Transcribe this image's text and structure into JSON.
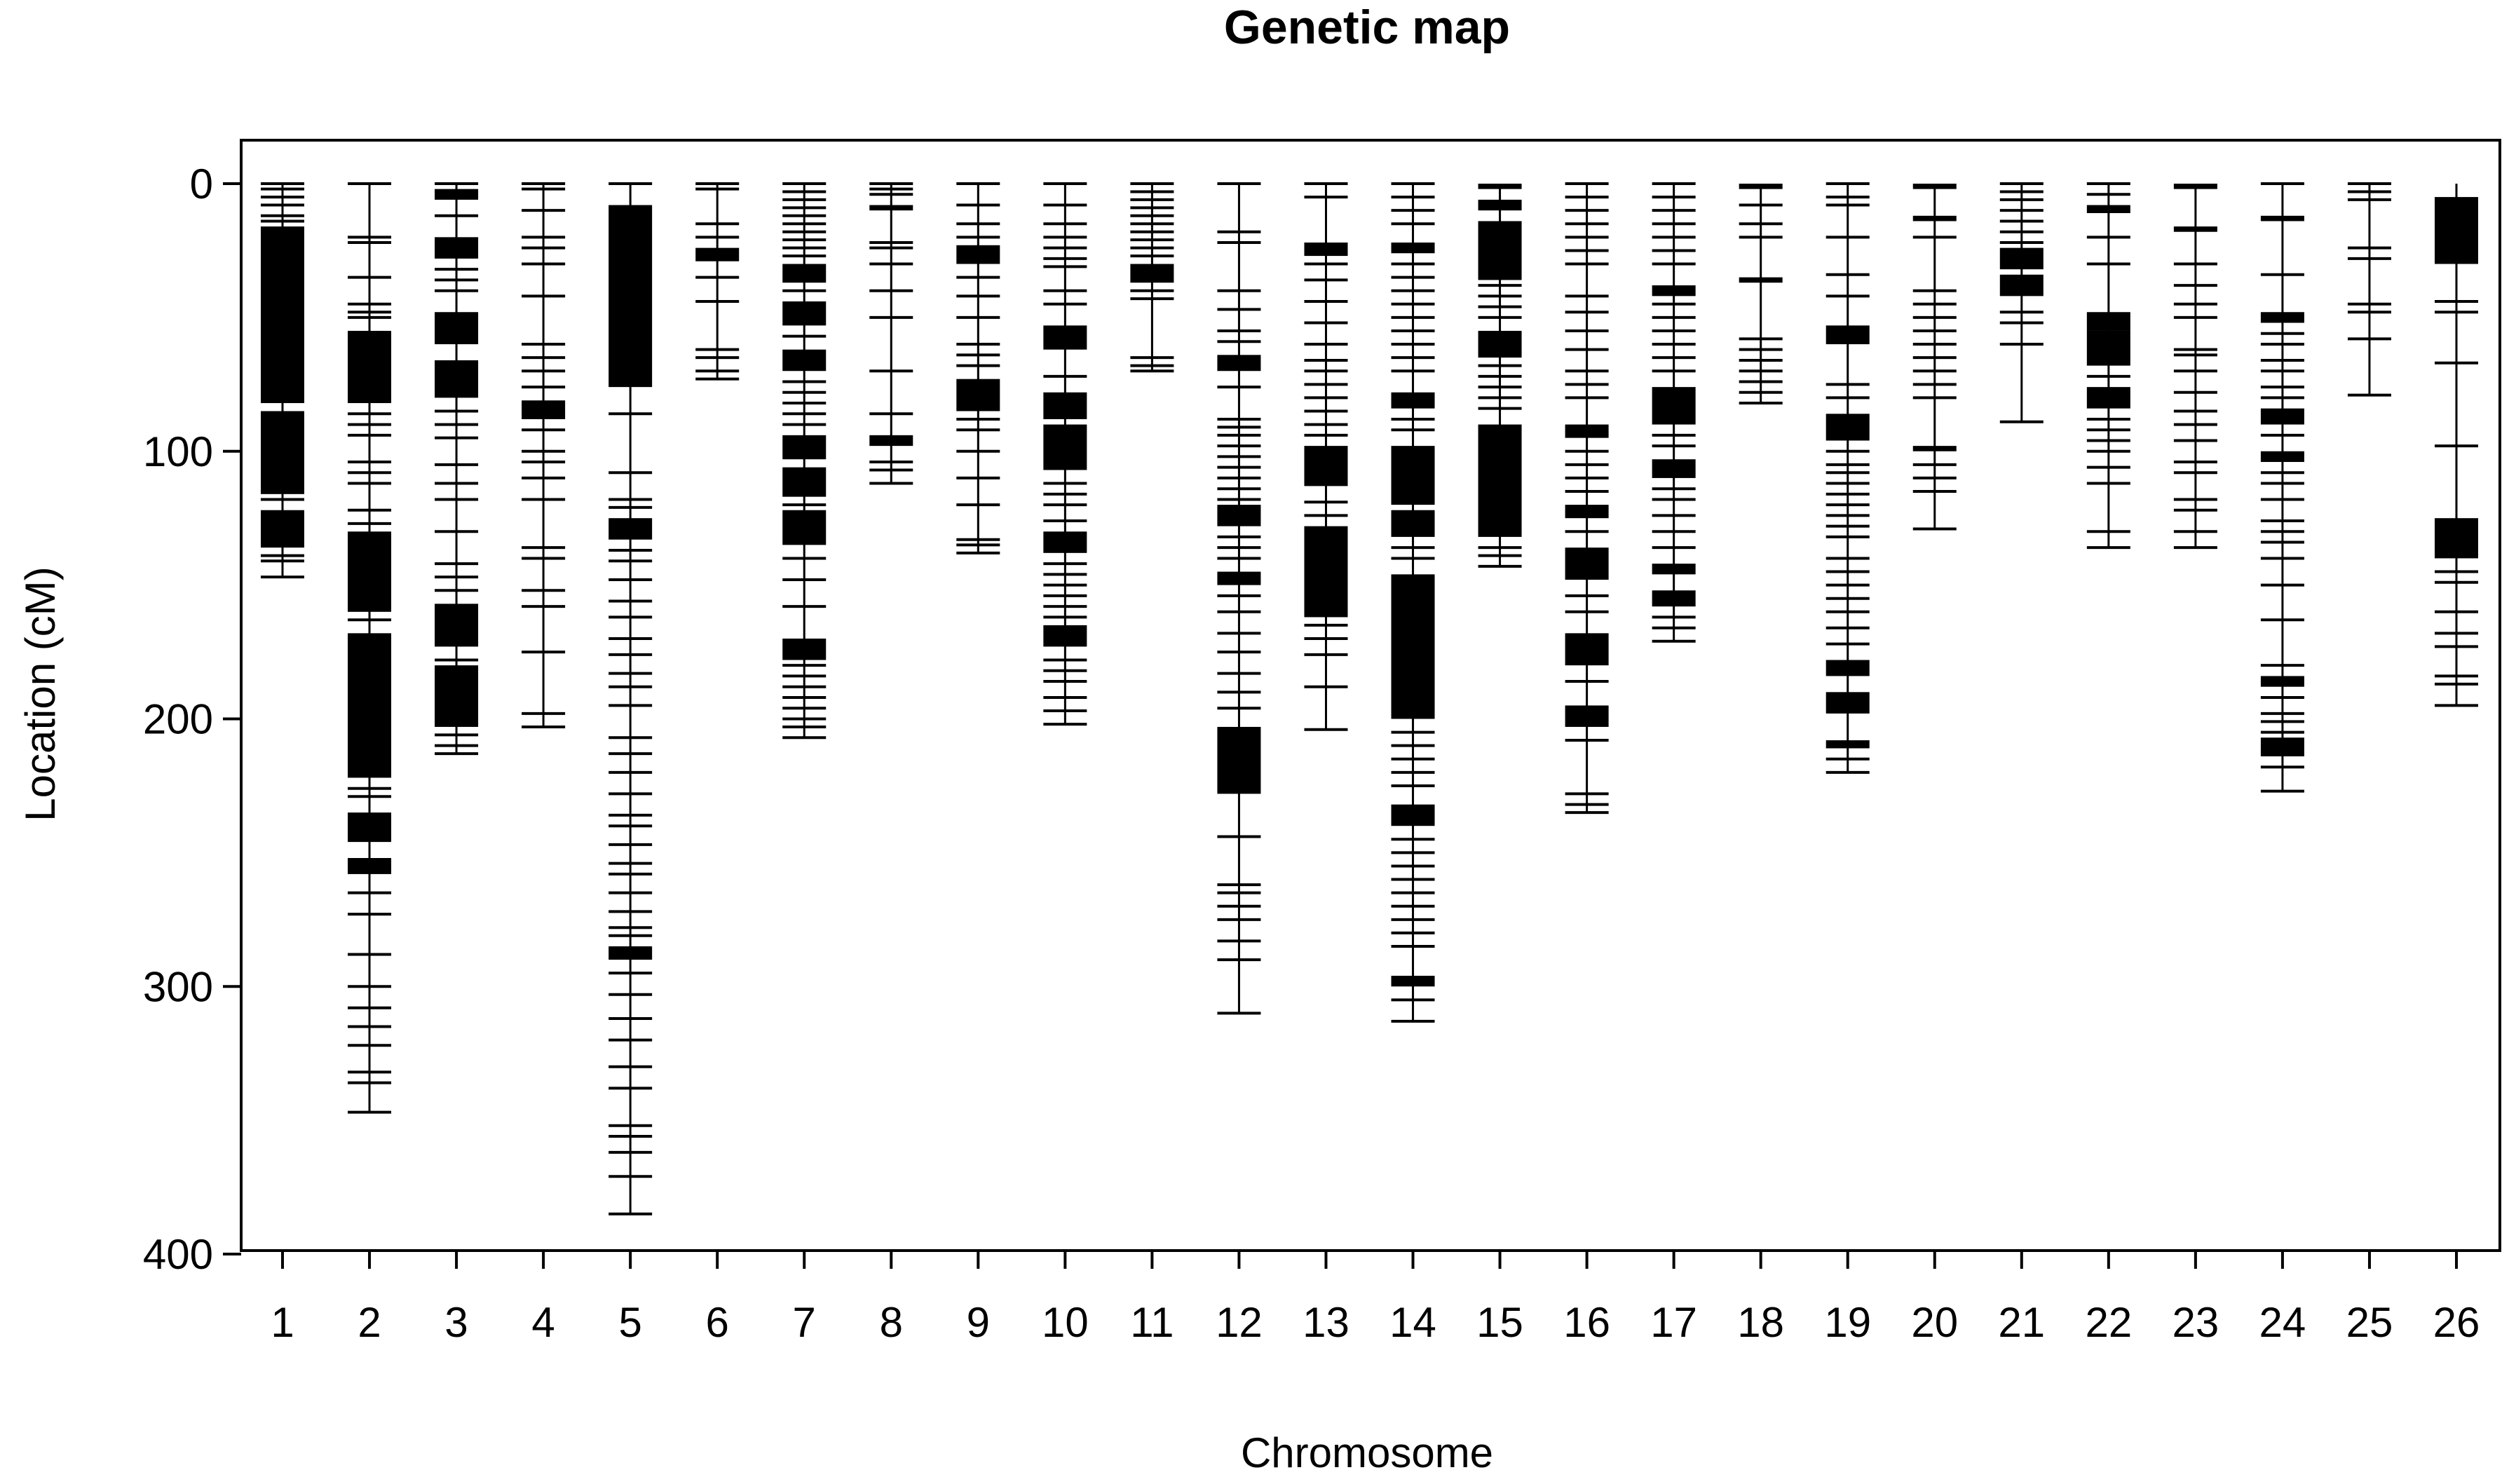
{
  "chart_data": {
    "type": "genetic-map",
    "title": "Genetic map",
    "xlabel": "Chromosome",
    "ylabel": "Location (cM)",
    "ylim": [
      400,
      0
    ],
    "yticks": [
      0,
      100,
      200,
      300,
      400
    ],
    "chromosomes": [
      {
        "name": "1",
        "length": 147,
        "blocks": [
          [
            16,
            82
          ],
          [
            85,
            116
          ],
          [
            122,
            136
          ]
        ],
        "markers": [
          0,
          2,
          5,
          8,
          12,
          14,
          90,
          118,
          139,
          141,
          147
        ]
      },
      {
        "name": "2",
        "length": 347,
        "blocks": [
          [
            55,
            82
          ],
          [
            130,
            160
          ],
          [
            168,
            222
          ],
          [
            235,
            246
          ],
          [
            252,
            258
          ]
        ],
        "markers": [
          0,
          20,
          22,
          35,
          45,
          48,
          50,
          86,
          90,
          94,
          104,
          108,
          112,
          122,
          127,
          163,
          226,
          229,
          265,
          273,
          288,
          300,
          308,
          315,
          322,
          332,
          336,
          347
        ]
      },
      {
        "name": "3",
        "length": 213,
        "blocks": [
          [
            2,
            6
          ],
          [
            20,
            28
          ],
          [
            48,
            60
          ],
          [
            66,
            80
          ],
          [
            157,
            173
          ],
          [
            180,
            203
          ]
        ],
        "markers": [
          0,
          12,
          32,
          36,
          40,
          85,
          90,
          95,
          105,
          112,
          118,
          130,
          142,
          147,
          152,
          178,
          206,
          210,
          213
        ]
      },
      {
        "name": "4",
        "length": 203,
        "blocks": [
          [
            81,
            88
          ]
        ],
        "markers": [
          0,
          2,
          10,
          20,
          24,
          30,
          42,
          60,
          65,
          70,
          76,
          92,
          100,
          104,
          110,
          118,
          136,
          140,
          152,
          158,
          175,
          198,
          203
        ]
      },
      {
        "name": "5",
        "length": 385,
        "blocks": [
          [
            8,
            76
          ],
          [
            125,
            133
          ],
          [
            285,
            290
          ]
        ],
        "markers": [
          0,
          86,
          108,
          118,
          121,
          137,
          141,
          148,
          156,
          162,
          170,
          176,
          183,
          188,
          195,
          207,
          213,
          220,
          228,
          236,
          240,
          247,
          254,
          258,
          265,
          272,
          278,
          281,
          295,
          303,
          312,
          320,
          330,
          338,
          352,
          356,
          362,
          371,
          385
        ]
      },
      {
        "name": "6",
        "length": 73,
        "blocks": [
          [
            24,
            29
          ]
        ],
        "markers": [
          0,
          2,
          15,
          20,
          35,
          44,
          62,
          65,
          70,
          73
        ]
      },
      {
        "name": "7",
        "length": 207,
        "blocks": [
          [
            30,
            37
          ],
          [
            44,
            53
          ],
          [
            62,
            70
          ],
          [
            94,
            103
          ],
          [
            106,
            117
          ],
          [
            122,
            135
          ],
          [
            170,
            178
          ]
        ],
        "markers": [
          0,
          3,
          6,
          9,
          12,
          15,
          18,
          21,
          24,
          27,
          40,
          57,
          74,
          78,
          82,
          86,
          90,
          120,
          140,
          148,
          158,
          180,
          184,
          188,
          192,
          196,
          200,
          203,
          207
        ]
      },
      {
        "name": "8",
        "length": 112,
        "blocks": [
          [
            8,
            10
          ],
          [
            94,
            98
          ]
        ],
        "markers": [
          0,
          2,
          4,
          22,
          24,
          30,
          40,
          50,
          70,
          86,
          104,
          107,
          112
        ]
      },
      {
        "name": "9",
        "length": 138,
        "blocks": [
          [
            23,
            30
          ],
          [
            73,
            85
          ]
        ],
        "markers": [
          0,
          8,
          15,
          20,
          35,
          42,
          50,
          60,
          64,
          68,
          88,
          92,
          100,
          110,
          120,
          133,
          135,
          138
        ]
      },
      {
        "name": "10",
        "length": 202,
        "blocks": [
          [
            53,
            62
          ],
          [
            78,
            88
          ],
          [
            90,
            107
          ],
          [
            130,
            138
          ],
          [
            165,
            173
          ]
        ],
        "markers": [
          0,
          8,
          15,
          20,
          24,
          28,
          31,
          40,
          45,
          72,
          112,
          116,
          120,
          126,
          142,
          146,
          150,
          154,
          158,
          162,
          178,
          182,
          186,
          192,
          197,
          202
        ]
      },
      {
        "name": "11",
        "length": 70,
        "blocks": [
          [
            30,
            37
          ]
        ],
        "markers": [
          0,
          3,
          6,
          9,
          12,
          15,
          18,
          21,
          24,
          27,
          40,
          43,
          65,
          68,
          70
        ]
      },
      {
        "name": "12",
        "length": 310,
        "blocks": [
          [
            64,
            70
          ],
          [
            120,
            128
          ],
          [
            145,
            150
          ],
          [
            203,
            228
          ]
        ],
        "markers": [
          0,
          18,
          22,
          40,
          47,
          55,
          59,
          76,
          88,
          91,
          94,
          98,
          102,
          106,
          110,
          114,
          118,
          132,
          136,
          140,
          154,
          160,
          168,
          175,
          183,
          190,
          196,
          244,
          262,
          265,
          270,
          275,
          283,
          290,
          310
        ]
      },
      {
        "name": "13",
        "length": 204,
        "blocks": [
          [
            22,
            27
          ],
          [
            98,
            113
          ],
          [
            128,
            162
          ]
        ],
        "markers": [
          0,
          5,
          30,
          36,
          44,
          52,
          60,
          66,
          70,
          75,
          80,
          85,
          90,
          94,
          119,
          124,
          165,
          170,
          176,
          188,
          204
        ]
      },
      {
        "name": "14",
        "length": 313,
        "blocks": [
          [
            22,
            26
          ],
          [
            78,
            84
          ],
          [
            98,
            120
          ],
          [
            122,
            132
          ],
          [
            146,
            200
          ],
          [
            232,
            240
          ],
          [
            296,
            300
          ]
        ],
        "markers": [
          0,
          5,
          10,
          15,
          30,
          35,
          40,
          45,
          50,
          55,
          60,
          65,
          70,
          88,
          92,
          136,
          140,
          205,
          210,
          215,
          220,
          225,
          245,
          250,
          255,
          260,
          265,
          270,
          275,
          280,
          285,
          305,
          313
        ]
      },
      {
        "name": "15",
        "length": 143,
        "blocks": [
          [
            0,
            2
          ],
          [
            6,
            10
          ],
          [
            14,
            36
          ],
          [
            55,
            65
          ],
          [
            90,
            132
          ]
        ],
        "markers": [
          38,
          42,
          46,
          50,
          68,
          72,
          76,
          80,
          84,
          136,
          139,
          143
        ]
      },
      {
        "name": "16",
        "length": 235,
        "blocks": [
          [
            90,
            95
          ],
          [
            120,
            125
          ],
          [
            136,
            148
          ],
          [
            168,
            180
          ],
          [
            195,
            203
          ]
        ],
        "markers": [
          0,
          5,
          10,
          15,
          20,
          25,
          30,
          42,
          48,
          55,
          62,
          70,
          75,
          80,
          100,
          105,
          110,
          115,
          130,
          154,
          160,
          186,
          208,
          228,
          232,
          235
        ]
      },
      {
        "name": "17",
        "length": 171,
        "blocks": [
          [
            38,
            42
          ],
          [
            76,
            90
          ],
          [
            103,
            110
          ],
          [
            142,
            146
          ],
          [
            152,
            158
          ]
        ],
        "markers": [
          0,
          5,
          10,
          15,
          20,
          25,
          30,
          45,
          50,
          55,
          60,
          65,
          70,
          94,
          98,
          114,
          118,
          124,
          130,
          136,
          162,
          166,
          171
        ]
      },
      {
        "name": "18",
        "length": 82,
        "blocks": [
          [
            0,
            2
          ],
          [
            35,
            37
          ]
        ],
        "markers": [
          8,
          15,
          20,
          58,
          62,
          66,
          70,
          74,
          78,
          82
        ]
      },
      {
        "name": "19",
        "length": 220,
        "blocks": [
          [
            53,
            60
          ],
          [
            86,
            96
          ],
          [
            178,
            184
          ],
          [
            190,
            198
          ],
          [
            208,
            211
          ]
        ],
        "markers": [
          0,
          5,
          8,
          20,
          34,
          42,
          75,
          80,
          100,
          105,
          108,
          112,
          116,
          120,
          124,
          128,
          132,
          140,
          145,
          150,
          155,
          160,
          166,
          172,
          215,
          220
        ]
      },
      {
        "name": "20",
        "length": 129,
        "blocks": [
          [
            0,
            2
          ],
          [
            12,
            14
          ],
          [
            98,
            100
          ]
        ],
        "markers": [
          20,
          40,
          45,
          50,
          55,
          60,
          65,
          70,
          75,
          80,
          105,
          110,
          115,
          129
        ]
      },
      {
        "name": "21",
        "length": 89,
        "blocks": [
          [
            24,
            32
          ],
          [
            34,
            42
          ]
        ],
        "markers": [
          0,
          3,
          6,
          10,
          14,
          18,
          22,
          48,
          52,
          60,
          89
        ]
      },
      {
        "name": "22",
        "length": 136,
        "blocks": [
          [
            8,
            11
          ],
          [
            48,
            55
          ],
          [
            55,
            68
          ],
          [
            76,
            84
          ]
        ],
        "markers": [
          0,
          4,
          20,
          30,
          72,
          88,
          92,
          96,
          100,
          106,
          112,
          130,
          136
        ]
      },
      {
        "name": "23",
        "length": 136,
        "blocks": [
          [
            0,
            2
          ],
          [
            16,
            18
          ]
        ],
        "markers": [
          30,
          38,
          45,
          50,
          62,
          64,
          70,
          78,
          85,
          90,
          96,
          104,
          108,
          118,
          122,
          130,
          136
        ]
      },
      {
        "name": "24",
        "length": 227,
        "blocks": [
          [
            12,
            14
          ],
          [
            48,
            52
          ],
          [
            84,
            90
          ],
          [
            100,
            104
          ],
          [
            184,
            188
          ],
          [
            207,
            214
          ]
        ],
        "markers": [
          0,
          34,
          56,
          60,
          66,
          70,
          76,
          80,
          94,
          108,
          112,
          118,
          126,
          130,
          134,
          140,
          150,
          163,
          180,
          192,
          198,
          201,
          205,
          218,
          227
        ]
      },
      {
        "name": "25",
        "length": 79,
        "blocks": [],
        "markers": [
          0,
          3,
          6,
          24,
          28,
          45,
          48,
          58,
          79
        ]
      },
      {
        "name": "26",
        "length": 195,
        "blocks": [
          [
            5,
            30
          ],
          [
            125,
            140
          ]
        ],
        "markers": [
          44,
          48,
          67,
          98,
          145,
          149,
          160,
          168,
          173,
          184,
          187,
          195
        ]
      }
    ]
  }
}
